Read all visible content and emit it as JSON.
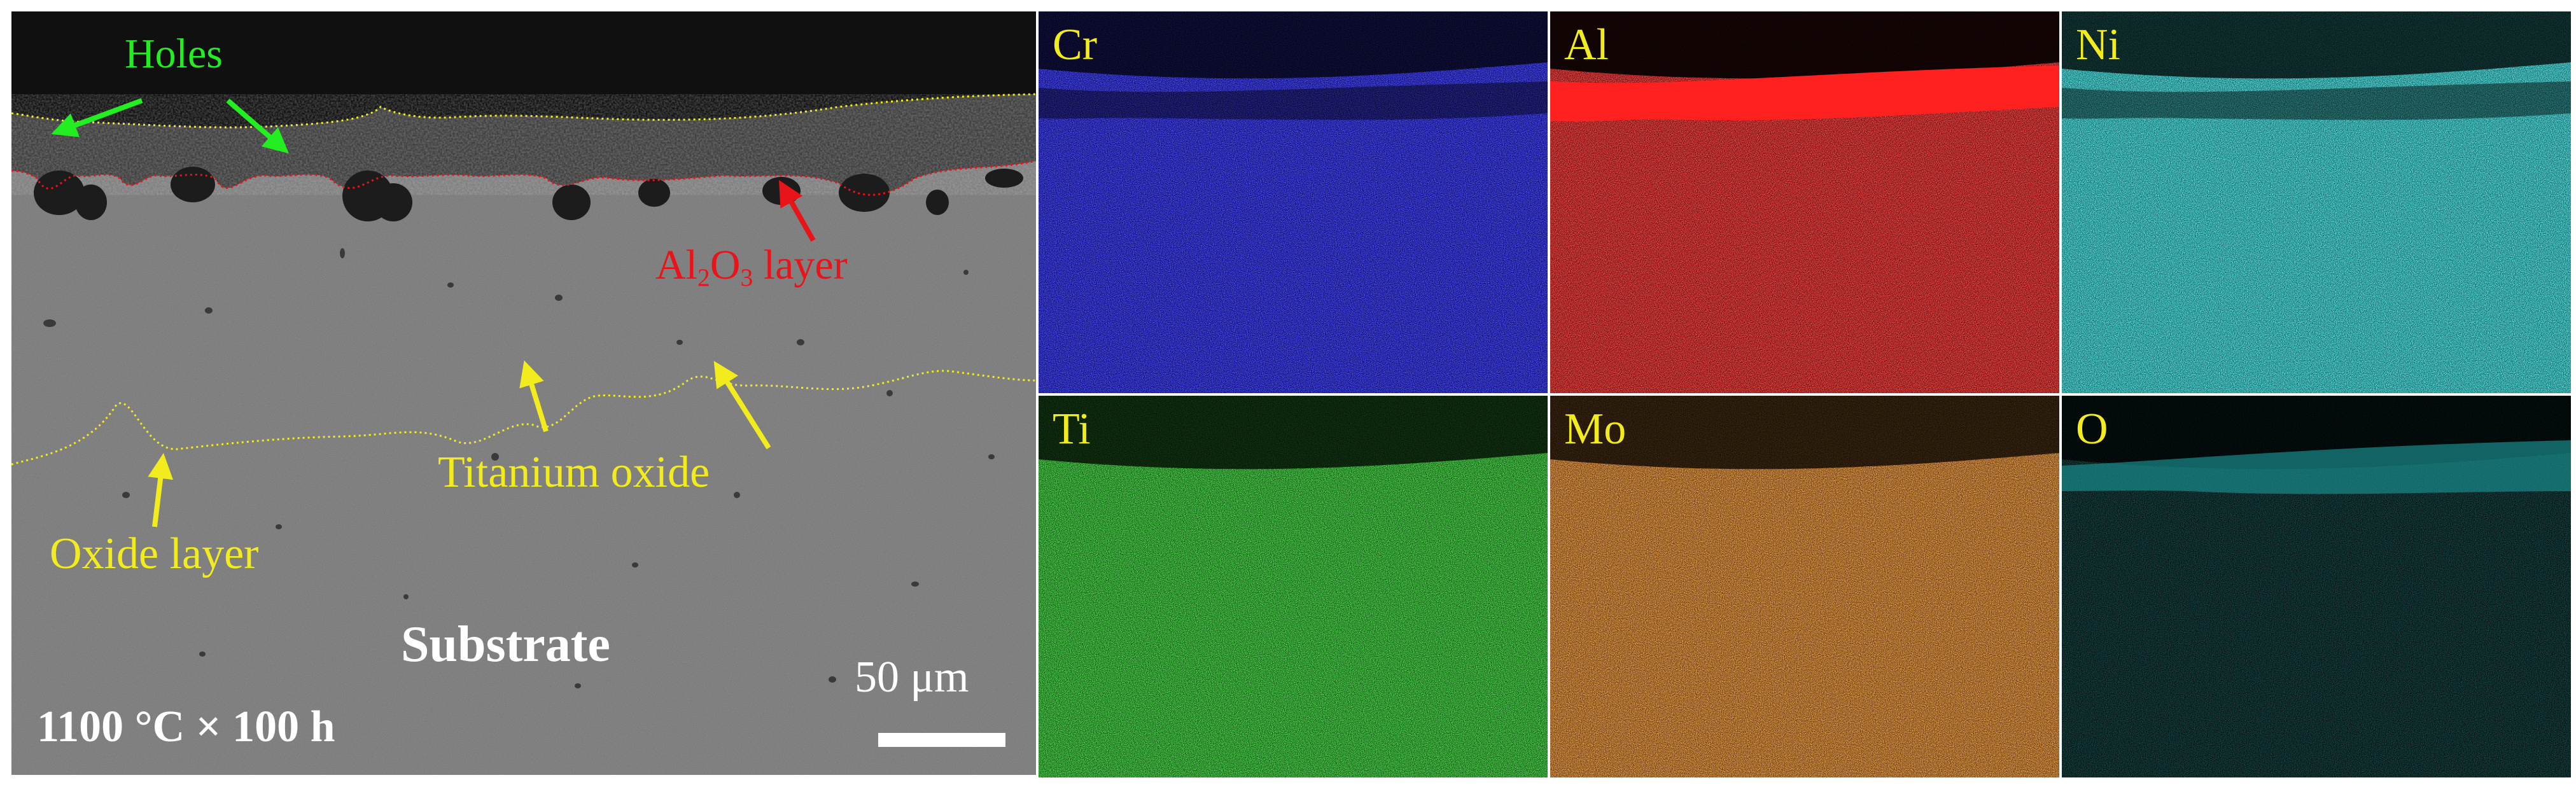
{
  "sem": {
    "labels": {
      "holes": "Holes",
      "al2o3_prefix": "Al",
      "al2o3_sub1": "2",
      "al2o3_mid": "O",
      "al2o3_sub2": "3",
      "al2o3_suffix": " layer",
      "titanium_oxide": "Titanium oxide",
      "oxide_layer": "Oxide layer",
      "substrate": "Substrate",
      "scale": "50 μm",
      "condition": "1100 °C × 100 h"
    },
    "colors": {
      "holes": "#22ee22",
      "al2o3": "#e8141a",
      "annotation": "#f2ec1e",
      "white_text": "#ffffff"
    }
  },
  "maps": [
    {
      "element": "Cr",
      "color": "#1a1aff"
    },
    {
      "element": "Al",
      "color": "#ff1a1a"
    },
    {
      "element": "Ni",
      "color": "#28e6e6"
    },
    {
      "element": "Ti",
      "color": "#22cc22"
    },
    {
      "element": "Mo",
      "color": "#f07a1e"
    },
    {
      "element": "O",
      "color": "#1a8a8a"
    }
  ]
}
